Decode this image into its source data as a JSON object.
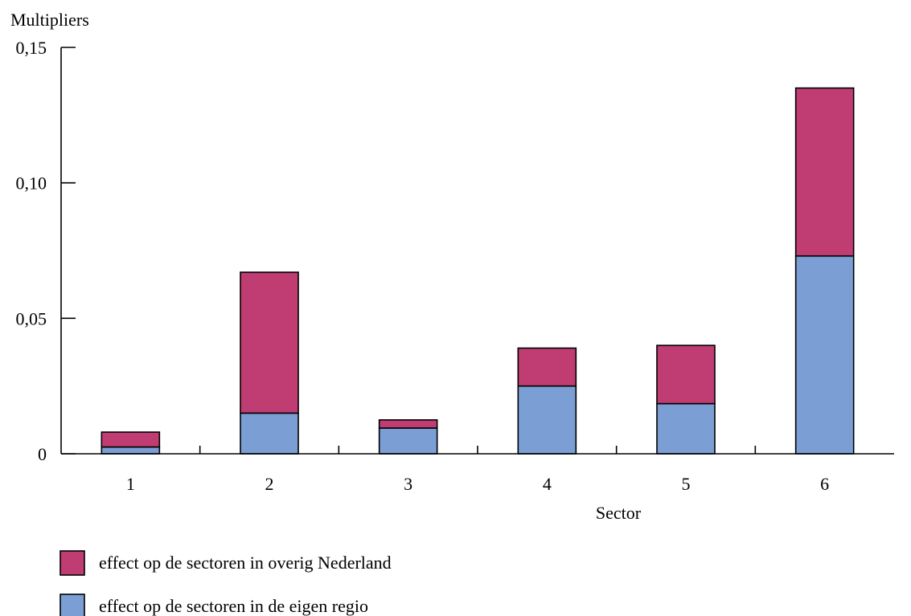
{
  "chart_data": {
    "type": "bar",
    "stacked": true,
    "ylabel": "Multipliers",
    "xlabel": "Sector",
    "categories": [
      "1",
      "2",
      "3",
      "4",
      "5",
      "6"
    ],
    "ylim": [
      0,
      0.15
    ],
    "yticks": [
      0,
      0.05,
      0.1,
      0.15
    ],
    "ytick_labels": [
      "0",
      "0,05",
      "0,10",
      "0,15"
    ],
    "grid": false,
    "legend_position": "bottom-left",
    "series": [
      {
        "name": "effect op de sectoren in de eigen regio",
        "color": "#7b9fd4",
        "values": [
          0.0025,
          0.015,
          0.0095,
          0.025,
          0.0185,
          0.073
        ]
      },
      {
        "name": "effect op de sectoren in overig Nederland",
        "color": "#bf3d72",
        "values": [
          0.0055,
          0.052,
          0.003,
          0.014,
          0.0215,
          0.062
        ]
      }
    ],
    "legend_order": [
      1,
      0
    ]
  }
}
